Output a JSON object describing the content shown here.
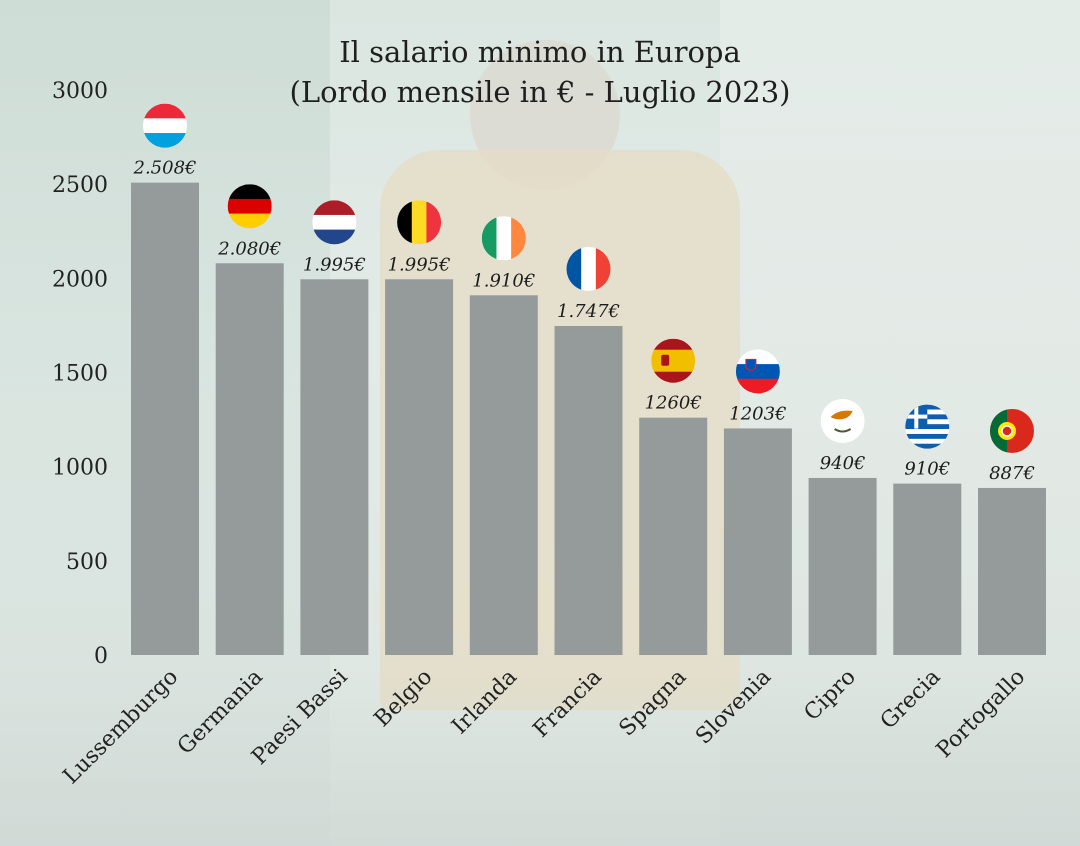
{
  "chart_data": {
    "type": "bar",
    "title": "Il salario minimo in Europa",
    "subtitle": "(Lordo mensile in € - Luglio 2023)",
    "categories": [
      "Lussemburgo",
      "Germania",
      "Paesi Bassi",
      "Belgio",
      "Irlanda",
      "Francia",
      "Spagna",
      "Slovenia",
      "Cipro",
      "Grecia",
      "Portogallo"
    ],
    "values": [
      2508,
      2080,
      1995,
      1995,
      1910,
      1747,
      1260,
      1203,
      940,
      910,
      887
    ],
    "value_labels": [
      "2.508€",
      "2.080€",
      "1.995€",
      "1.995€",
      "1.910€",
      "1.747€",
      "1260€",
      "1203€",
      "940€",
      "910€",
      "887€"
    ],
    "flags": [
      "luxembourg-flag",
      "germany-flag",
      "netherlands-flag",
      "belgium-flag",
      "ireland-flag",
      "france-flag",
      "spain-flag",
      "slovenia-flag",
      "cyprus-flag",
      "greece-flag",
      "portugal-flag"
    ],
    "yticks": [
      "0",
      "500",
      "1000",
      "1500",
      "2000",
      "2500",
      "3000"
    ],
    "ylim": [
      0,
      3000
    ],
    "bar_color": "#959b9a",
    "grid": false,
    "legend": "none"
  }
}
